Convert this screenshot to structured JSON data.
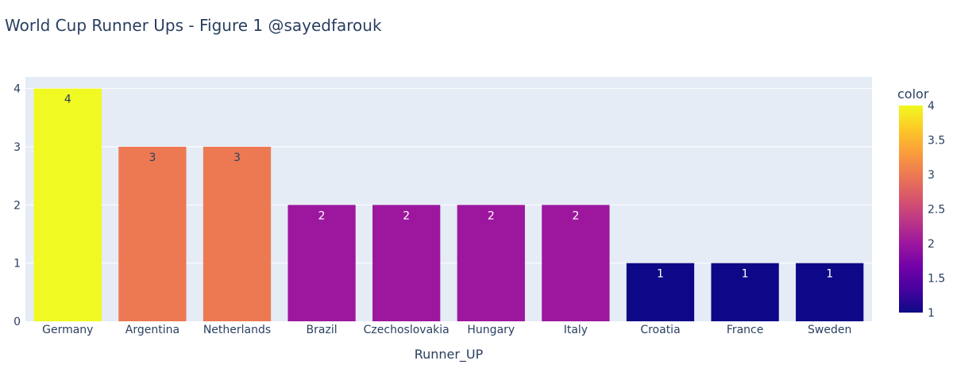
{
  "chart_data": {
    "type": "bar",
    "title": "World Cup Runner Ups - Figure 1 @sayedfarouk",
    "xlabel": "Runner_UP",
    "ylabel": "",
    "categories": [
      "Germany",
      "Argentina",
      "Netherlands",
      "Brazil",
      "Czechoslovakia",
      "Hungary",
      "Italy",
      "Croatia",
      "France",
      "Sweden"
    ],
    "values": [
      4,
      3,
      3,
      2,
      2,
      2,
      2,
      1,
      1,
      1
    ],
    "data_labels": [
      "4",
      "3",
      "3",
      "2",
      "2",
      "2",
      "2",
      "1",
      "1",
      "1"
    ],
    "ylim": [
      0,
      4.2
    ],
    "y_ticks": [
      0,
      1,
      2,
      3,
      4
    ],
    "y_tick_labels": [
      "0",
      "1",
      "2",
      "3",
      "4"
    ],
    "grid": true,
    "legend_position": "right",
    "colorbar": {
      "title": "color",
      "range": [
        1,
        4
      ],
      "ticks": [
        1,
        1.5,
        2,
        2.5,
        3,
        3.5,
        4
      ],
      "tick_labels": [
        "1",
        "1.5",
        "2",
        "2.5",
        "3",
        "3.5",
        "4"
      ],
      "colorscale": [
        "#0d0887",
        "#46039f",
        "#7201a8",
        "#9c179e",
        "#bd3786",
        "#d8576b",
        "#ed7953",
        "#fb9f3a",
        "#fdca26",
        "#f0f921"
      ]
    },
    "colors": {
      "plot_background": "#e5ecf6",
      "gridline": "#ffffff",
      "text": "#2a3f5f"
    }
  }
}
